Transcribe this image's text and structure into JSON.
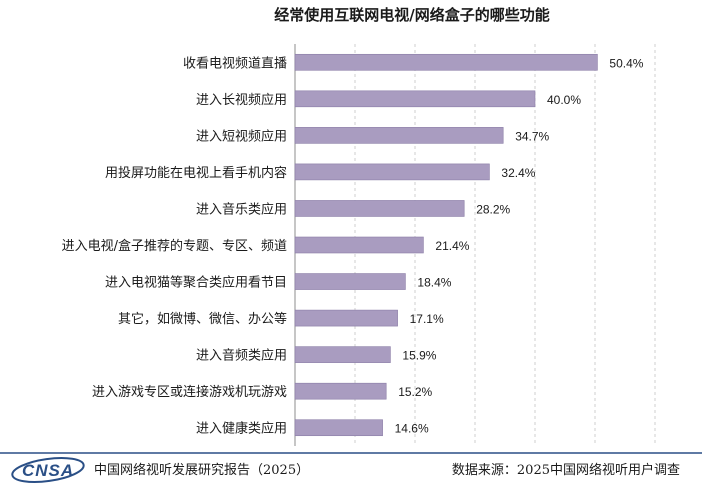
{
  "chart_data": {
    "type": "bar",
    "orientation": "horizontal",
    "title": "经常使用互联网电视/网络盒子的哪些功能",
    "categories": [
      "收看电视频道直播",
      "进入长视频应用",
      "进入短视频应用",
      "用投屏功能在电视上看手机内容",
      "进入音乐类应用",
      "进入电视/盒子推荐的专题、专区、频道",
      "进入电视猫等聚合类应用看节目",
      "其它，如微博、微信、办公等",
      "进入音频类应用",
      "进入游戏专区或连接游戏机玩游戏",
      "进入健康类应用"
    ],
    "values": [
      50.4,
      40.0,
      34.7,
      32.4,
      28.2,
      21.4,
      18.4,
      17.1,
      15.9,
      15.2,
      14.6
    ],
    "value_labels": [
      "50.4%",
      "40.0%",
      "34.7%",
      "32.4%",
      "28.2%",
      "21.4%",
      "18.4%",
      "17.1%",
      "15.9%",
      "15.2%",
      "14.6%"
    ],
    "xlim": [
      0,
      60
    ],
    "grid": "vertical dashed",
    "bar_color": "#a99cc0",
    "bar_stroke": "#8a7ca6"
  },
  "footer": {
    "logo": "CNSA",
    "report": "中国网络视听发展研究报告（2025）",
    "source": "数据来源：2025中国网络视听用户调查"
  },
  "colors": {
    "logo_blue": "#2a4f86",
    "grid": "#cfcfcf",
    "axis": "#8c8c8c"
  }
}
